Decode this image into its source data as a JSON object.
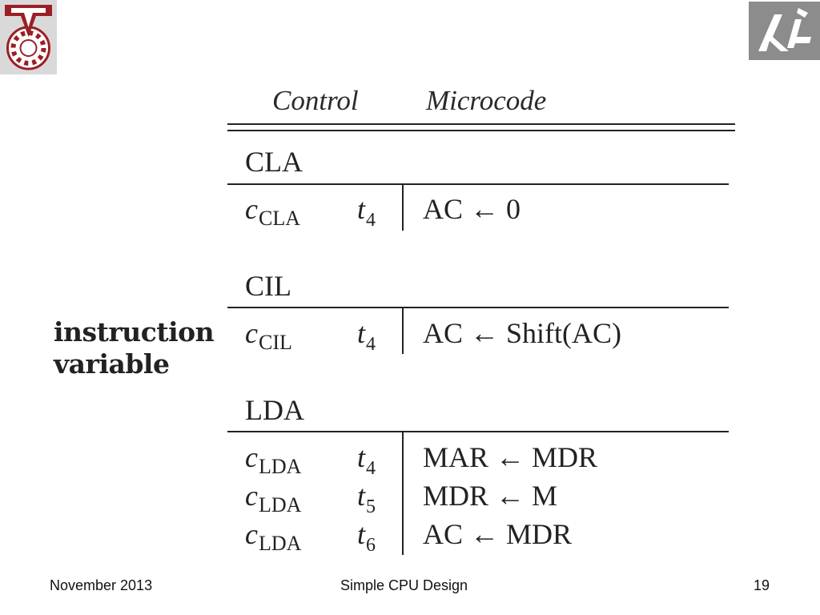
{
  "slide": {
    "side_text": {
      "line1": "instruction",
      "line2": "variable"
    },
    "table": {
      "headers": {
        "control": "Control",
        "microcode": "Microcode"
      },
      "sections": [
        {
          "title": "CLA",
          "rows": [
            {
              "c": "c",
              "c_sub": "CLA",
              "t": "t",
              "t_sub": "4",
              "op": "AC ← 0"
            }
          ]
        },
        {
          "title": "CIL",
          "rows": [
            {
              "c": "c",
              "c_sub": "CIL",
              "t": "t",
              "t_sub": "4",
              "op": "AC ← Shift(AC)"
            }
          ]
        },
        {
          "title": "LDA",
          "rows": [
            {
              "c": "c",
              "c_sub": "LDA",
              "t": "t",
              "t_sub": "4",
              "op": "MAR ← MDR"
            },
            {
              "c": "c",
              "c_sub": "LDA",
              "t": "t",
              "t_sub": "5",
              "op": "MDR ← M"
            },
            {
              "c": "c",
              "c_sub": "LDA",
              "t": "t",
              "t_sub": "6",
              "op": "AC ← MDR"
            }
          ]
        }
      ]
    },
    "footer": {
      "date": "November 2013",
      "title": "Simple CPU Design",
      "page": "19"
    },
    "logos": {
      "left": "technion-logo",
      "right": "cs-department-logo"
    },
    "colors": {
      "logo_bg": "#8c8c8c",
      "logo_red": "#9a1f25",
      "logo_gray": "#888888"
    }
  }
}
